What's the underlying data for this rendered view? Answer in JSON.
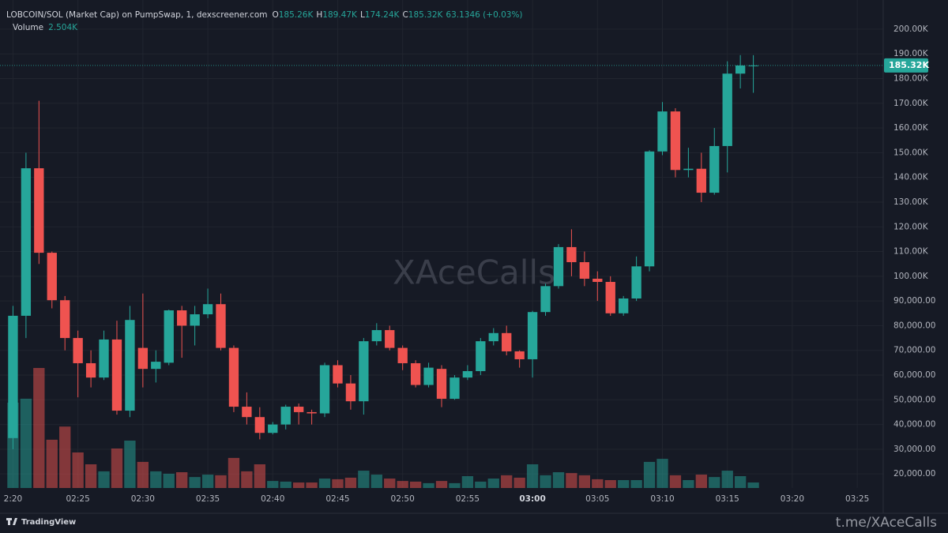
{
  "chart_data": {
    "type": "candlestick",
    "header": {
      "symbol": "LOBCOIN/SOL (Market Cap) on PumpSwap, 1, dexscreener.com",
      "ohlc": [
        {
          "label": "O",
          "value": "185.26K"
        },
        {
          "label": "H",
          "value": "189.47K"
        },
        {
          "label": "L",
          "value": "174.24K"
        },
        {
          "label": "C",
          "value": "185.32K"
        }
      ],
      "change": "63.1346 (+0.03%)",
      "volume_label": "Volume",
      "volume_value": "2.504K"
    },
    "last_price_label": "185.32K",
    "watermark": "XAceCalls",
    "footer_brand": "TradingView",
    "footer_link": "t.me/XAceCalls",
    "up_color": "#26a69a",
    "down_color": "#ef5350",
    "x": [
      "02:20",
      "02:21",
      "02:22",
      "02:23",
      "02:24",
      "02:25",
      "02:26",
      "02:27",
      "02:28",
      "02:29",
      "02:30",
      "02:31",
      "02:32",
      "02:33",
      "02:34",
      "02:35",
      "02:36",
      "02:37",
      "02:38",
      "02:39",
      "02:40",
      "02:41",
      "02:42",
      "02:43",
      "02:44",
      "02:45",
      "02:46",
      "02:47",
      "02:48",
      "02:49",
      "02:50",
      "02:51",
      "02:52",
      "02:53",
      "02:54",
      "02:55",
      "02:56",
      "02:57",
      "02:58",
      "02:59",
      "03:00",
      "03:01",
      "03:02",
      "03:03",
      "03:04",
      "03:05",
      "03:06",
      "03:07",
      "03:08",
      "03:09",
      "03:10",
      "03:11",
      "03:12",
      "03:13",
      "03:14",
      "03:15",
      "03:16",
      "03:17"
    ],
    "open": [
      34500,
      84000,
      143700,
      109500,
      90300,
      75000,
      64800,
      59000,
      74400,
      45600,
      71000,
      62500,
      65000,
      86200,
      80000,
      84600,
      88700,
      71000,
      47200,
      43000,
      36600,
      40000,
      47200,
      45000,
      44500,
      64000,
      56600,
      49400,
      73700,
      78200,
      71000,
      64800,
      56000,
      62500,
      50400,
      59000,
      61600,
      73700,
      77000,
      69600,
      66400,
      85500,
      96000,
      111800,
      105700,
      99000,
      97700,
      85000,
      91000,
      104000,
      150500,
      166700,
      143000,
      143500,
      133800,
      152700,
      182000,
      185260
    ],
    "high": [
      88000,
      150000,
      171000,
      110000,
      92000,
      78000,
      70000,
      78000,
      82000,
      88000,
      93000,
      70000,
      86500,
      88000,
      88000,
      95000,
      93000,
      72000,
      53000,
      47000,
      41000,
      48000,
      48500,
      46000,
      65000,
      66000,
      60000,
      75000,
      81000,
      80000,
      72000,
      66000,
      65000,
      64000,
      60000,
      64000,
      75000,
      79000,
      80000,
      70000,
      86000,
      97000,
      113000,
      119000,
      110000,
      102000,
      100000,
      92000,
      108000,
      151000,
      170500,
      168000,
      152000,
      150000,
      160000,
      187000,
      189500,
      189470
    ],
    "low": [
      30000,
      75000,
      105000,
      87000,
      70000,
      51000,
      55000,
      58000,
      44000,
      43000,
      55000,
      57000,
      64000,
      67000,
      72000,
      83000,
      70000,
      45000,
      40000,
      34000,
      36000,
      38000,
      40000,
      40000,
      43000,
      55000,
      46000,
      44000,
      72000,
      70000,
      62000,
      55000,
      55000,
      47000,
      50000,
      58000,
      60000,
      72000,
      68000,
      63000,
      59000,
      84000,
      95000,
      100000,
      96000,
      90000,
      84000,
      84000,
      90000,
      102000,
      149000,
      140000,
      140000,
      130000,
      133000,
      142000,
      176000,
      174240
    ],
    "close": [
      84000,
      143700,
      109500,
      90300,
      75000,
      64800,
      59000,
      74400,
      45600,
      82300,
      62500,
      65400,
      86200,
      80000,
      84600,
      88700,
      71000,
      47200,
      43000,
      36600,
      40000,
      47200,
      45000,
      44500,
      64000,
      56600,
      49400,
      73700,
      78200,
      71000,
      64800,
      56000,
      63000,
      50400,
      59000,
      61600,
      73700,
      77000,
      69600,
      66400,
      85500,
      96000,
      111800,
      105700,
      99000,
      97700,
      85000,
      91000,
      104000,
      150500,
      166700,
      143000,
      143500,
      133800,
      152700,
      182000,
      185300,
      185320
    ],
    "volume": [
      38900,
      40700,
      54700,
      22000,
      28000,
      16200,
      10800,
      7600,
      18000,
      21600,
      11900,
      7600,
      6500,
      7200,
      5000,
      6100,
      5800,
      13700,
      7600,
      10800,
      3200,
      2900,
      2500,
      2500,
      4300,
      4000,
      4700,
      7900,
      6100,
      4300,
      3200,
      2900,
      2200,
      3200,
      2200,
      5400,
      2900,
      4300,
      5800,
      4700,
      10800,
      5800,
      7200,
      6800,
      5800,
      4000,
      3600,
      3600,
      3600,
      11900,
      13300,
      5800,
      3600,
      6100,
      5000,
      7900,
      5400,
      2504
    ],
    "xlim": [
      "02:19",
      "03:27"
    ],
    "xticks": [
      {
        "value": "02:20",
        "label": "2:20"
      },
      "02:25",
      "02:30",
      "02:35",
      "02:40",
      "02:45",
      "02:50",
      "02:55",
      "03:00",
      "03:05",
      "03:10",
      "03:15",
      "03:20",
      "03:25"
    ],
    "ylim": [
      14300,
      211800
    ],
    "yticks": [
      {
        "value": 20000,
        "label": "20,000.00"
      },
      {
        "value": 30000,
        "label": "30,000.00"
      },
      {
        "value": 40000,
        "label": "40,000.00"
      },
      {
        "value": 50000,
        "label": "50,000.00"
      },
      {
        "value": 60000,
        "label": "60,000.00"
      },
      {
        "value": 70000,
        "label": "70,000.00"
      },
      {
        "value": 80000,
        "label": "80,000.00"
      },
      {
        "value": 90000,
        "label": "90,000.00"
      },
      {
        "value": 100000,
        "label": "100.00K"
      },
      {
        "value": 110000,
        "label": "110.00K"
      },
      {
        "value": 120000,
        "label": "120.00K"
      },
      {
        "value": 130000,
        "label": "130.00K"
      },
      {
        "value": 140000,
        "label": "140.00K"
      },
      {
        "value": 150000,
        "label": "150.00K"
      },
      {
        "value": 160000,
        "label": "160.00K"
      },
      {
        "value": 170000,
        "label": "170.00K"
      },
      {
        "value": 180000,
        "label": "180.00K"
      },
      {
        "value": 190000,
        "label": "190.00K"
      },
      {
        "value": 200000,
        "label": "200.00K"
      }
    ],
    "grid": true
  }
}
